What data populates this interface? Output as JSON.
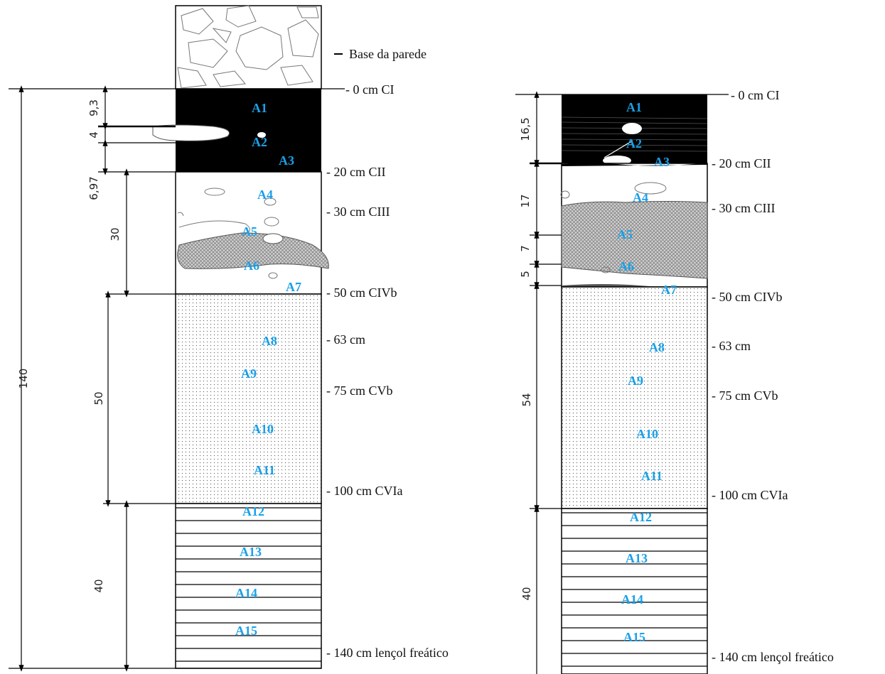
{
  "colors": {
    "sample_label": "#1aa0e8",
    "fill_black": "#000000",
    "line": "#000000",
    "hatch": "#888888"
  },
  "left_profile": {
    "base_label": "Base da parede",
    "depth_labels": {
      "d0": "- 0 cm CI",
      "d20": "- 20 cm CII",
      "d30": "- 30 cm CIII",
      "d50": "- 50 cm CIVb",
      "d63": "- 63 cm",
      "d75": "- 75 cm CVb",
      "d100": "- 100 cm CVIa",
      "d140": "- 140 cm lençol freático"
    },
    "dimensions": {
      "total": "140",
      "d9_3": "9,3",
      "d4": "4",
      "d6_97": "6,97",
      "d30": "30",
      "d50": "50",
      "d40": "40"
    },
    "samples": [
      "A1",
      "A2",
      "A3",
      "A4",
      "A5",
      "A6",
      "A7",
      "A8",
      "A9",
      "A10",
      "A11",
      "A12",
      "A13",
      "A14",
      "A15"
    ]
  },
  "right_profile": {
    "depth_labels": {
      "d0": "- 0 cm CI",
      "d20": "- 20 cm CII",
      "d30": "- 30 cm CIII",
      "d50": "- 50 cm CIVb",
      "d63": "- 63 cm",
      "d75": "- 75 cm CVb",
      "d100": "- 100 cm CVIa",
      "d140": "- 140 cm lençol freático"
    },
    "dimensions": {
      "d16_5": "16,5",
      "d17": "17",
      "d7": "7",
      "d5": "5",
      "d54": "54",
      "d40": "40"
    },
    "samples": [
      "A1",
      "A2",
      "A3",
      "A4",
      "A5",
      "A6",
      "A7",
      "A8",
      "A9",
      "A10",
      "A11",
      "A12",
      "A13",
      "A14",
      "A15"
    ]
  }
}
